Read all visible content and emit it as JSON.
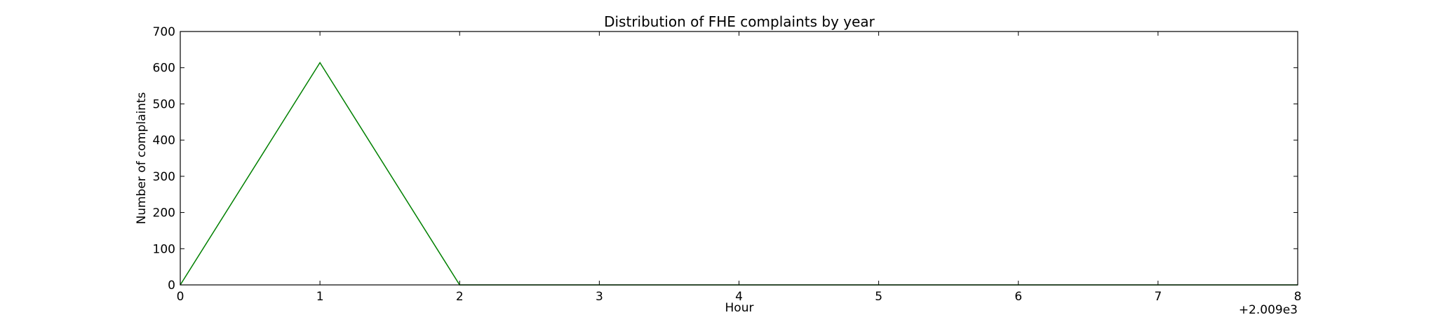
{
  "chart_data": {
    "type": "line",
    "title": "Distribution of  FHE complaints by year",
    "xlabel": "Hour",
    "ylabel": "Number of complaints",
    "x_offset_label": "+2.009e3",
    "xlim": [
      0,
      8
    ],
    "ylim": [
      0,
      700
    ],
    "xticks": [
      0,
      1,
      2,
      3,
      4,
      5,
      6,
      7,
      8
    ],
    "yticks": [
      0,
      100,
      200,
      300,
      400,
      500,
      600,
      700
    ],
    "grid": false,
    "series": [
      {
        "color": "#008000",
        "x": [
          0,
          1,
          2,
          3,
          4,
          5,
          6,
          7,
          8
        ],
        "y": [
          0,
          614,
          0,
          0,
          0,
          0,
          0,
          0,
          0
        ]
      }
    ]
  }
}
